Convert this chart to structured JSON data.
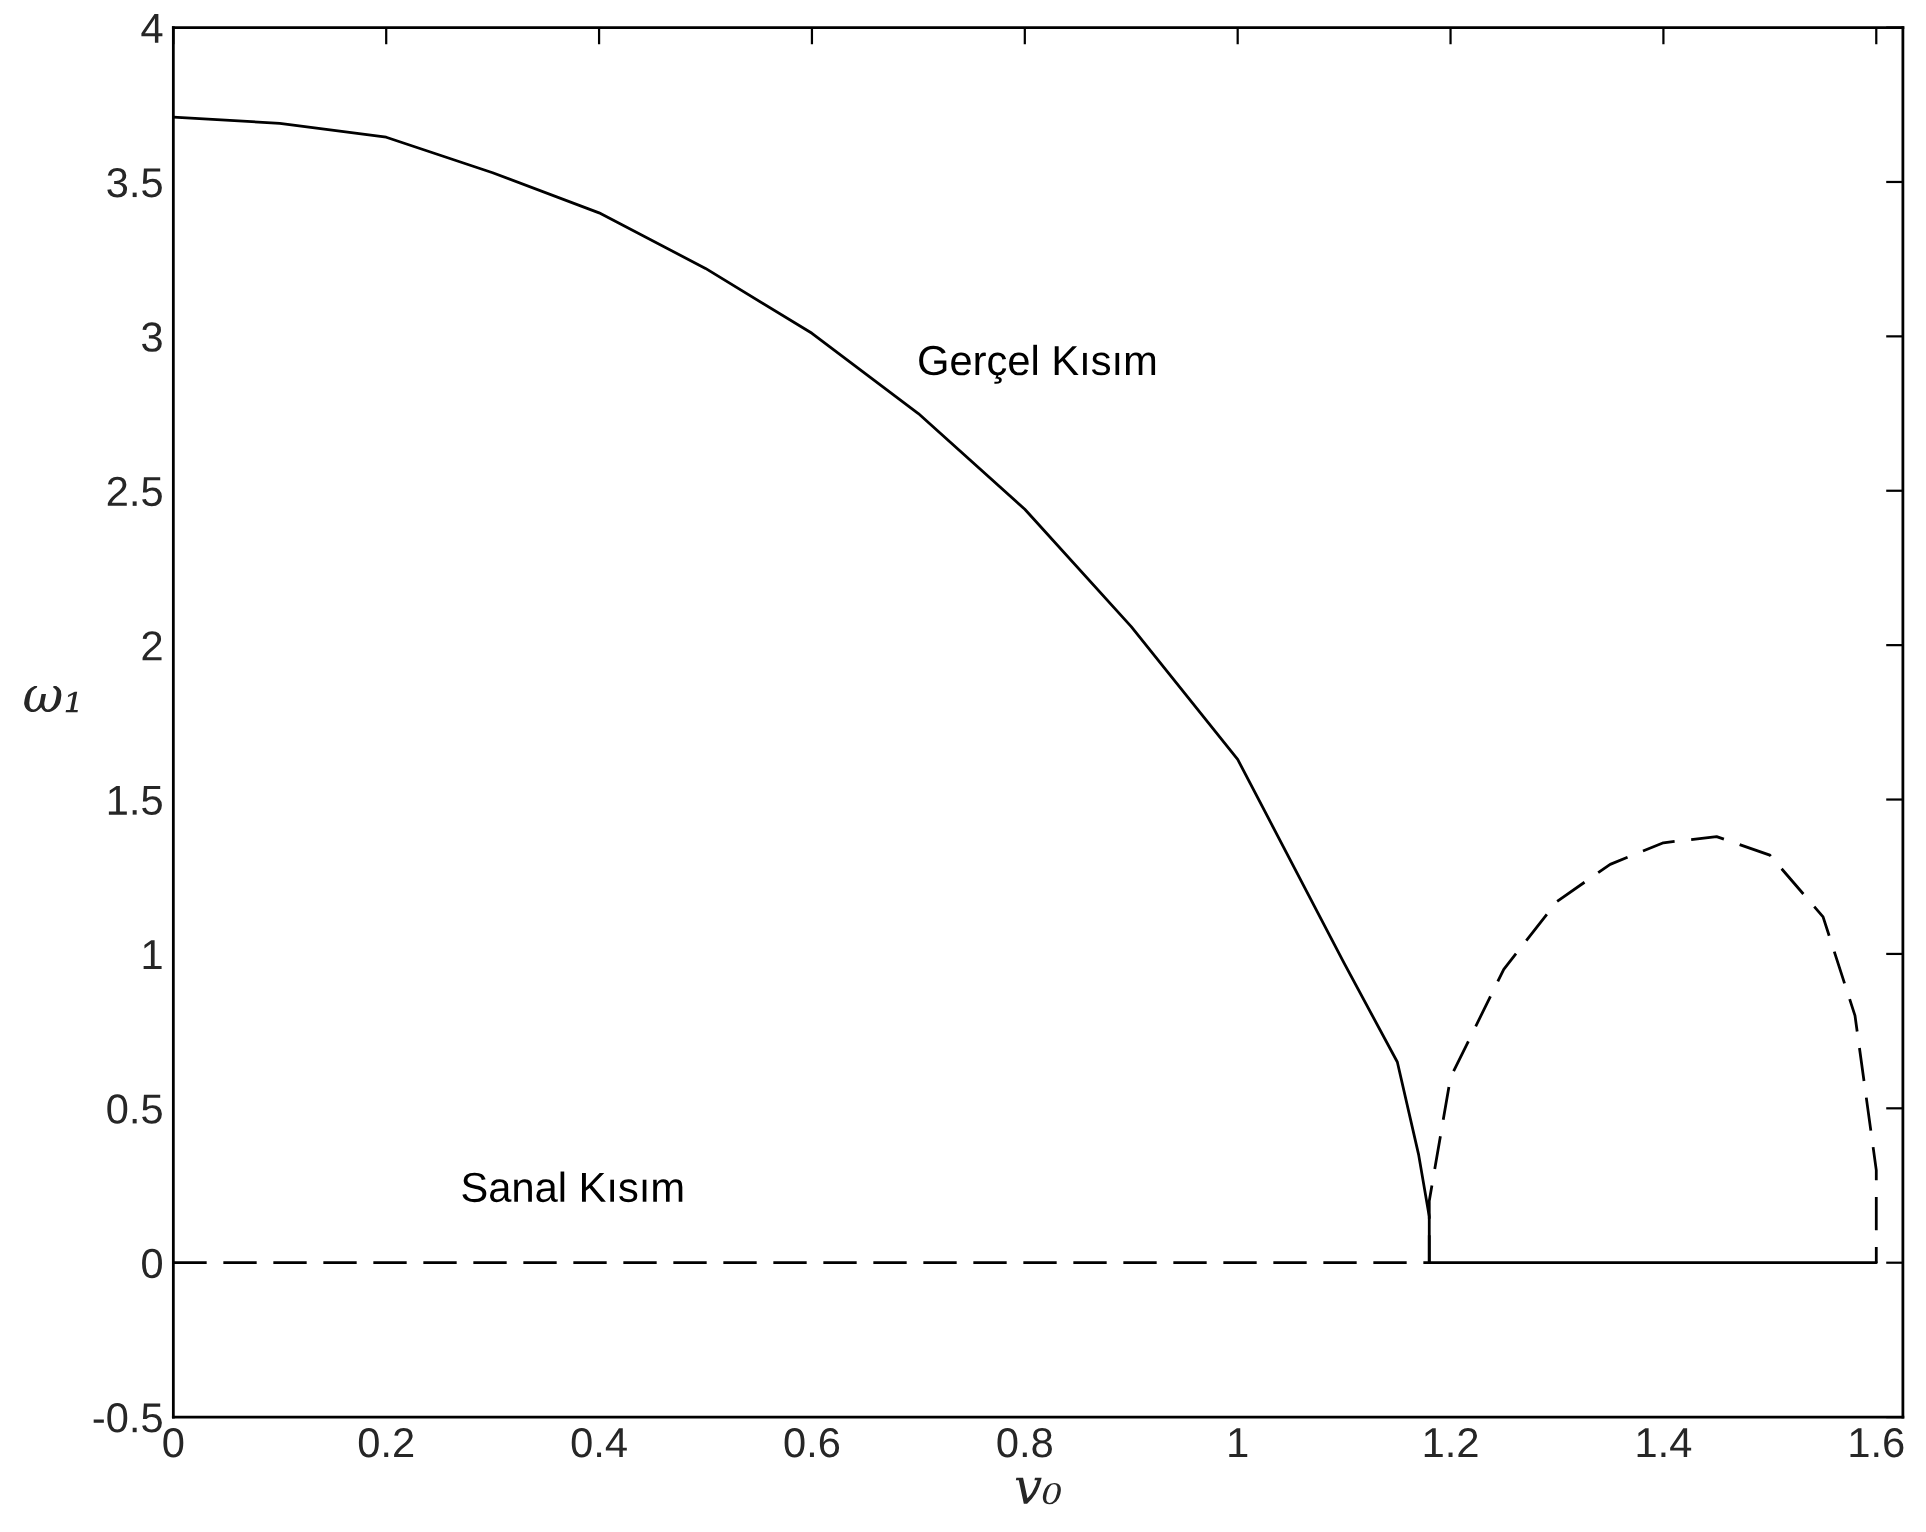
{
  "chart_data": {
    "type": "line",
    "xlabel": "v₀",
    "ylabel": "ω₁",
    "xlim": [
      0,
      1.625
    ],
    "ylim": [
      -0.5,
      4
    ],
    "xticks": [
      0,
      0.2,
      0.4,
      0.6,
      0.8,
      1,
      1.2,
      1.4,
      1.6
    ],
    "yticks": [
      {
        "value": -0.5,
        "label": "-0.5"
      },
      0,
      0.5,
      1,
      1.5,
      2,
      2.5,
      3,
      3.5,
      4
    ],
    "grid": false,
    "legend": false,
    "series": [
      {
        "name": "Gerçel Kısım",
        "color": "#000000",
        "line_style": "solid",
        "x": [
          0,
          0.1,
          0.2,
          0.3,
          0.4,
          0.5,
          0.6,
          0.7,
          0.8,
          0.9,
          1.0,
          1.1,
          1.15,
          1.17,
          1.18,
          1.18,
          1.4,
          1.6
        ],
        "values": [
          3.71,
          3.69,
          3.645,
          3.53,
          3.4,
          3.22,
          3.01,
          2.75,
          2.44,
          2.06,
          1.63,
          0.97,
          0.65,
          0.35,
          0.15,
          0,
          0,
          0
        ]
      },
      {
        "name": "Sanal Kısım",
        "color": "#000000",
        "line_style": "dashed",
        "x": [
          0,
          1.18,
          1.18,
          1.2,
          1.25,
          1.3,
          1.35,
          1.4,
          1.45,
          1.5,
          1.55,
          1.58,
          1.6,
          1.6
        ],
        "values": [
          0,
          0,
          0.2,
          0.6,
          0.95,
          1.17,
          1.29,
          1.36,
          1.38,
          1.32,
          1.12,
          0.8,
          0.3,
          0
        ]
      }
    ]
  }
}
